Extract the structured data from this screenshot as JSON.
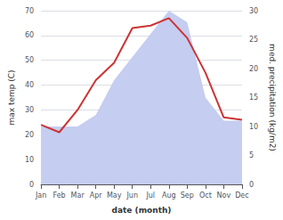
{
  "chart_data": {
    "type": "line",
    "categories": [
      "Jan",
      "Feb",
      "Mar",
      "Apr",
      "May",
      "Jun",
      "Jul",
      "Aug",
      "Sep",
      "Oct",
      "Nov",
      "Dec"
    ],
    "xlabel": "date (month)",
    "ylabel": "max temp (C)",
    "y2label": "med. precipitation (kg/m2)",
    "series": [
      {
        "type": "line",
        "color": "#cc3333",
        "values": [
          24,
          21,
          30,
          42,
          49,
          63,
          64,
          67,
          59,
          45,
          27,
          26
        ]
      },
      {
        "type": "area",
        "color": "#c5cdf0",
        "axis": "y2",
        "values": [
          10,
          10,
          10,
          12,
          18,
          22,
          26,
          30,
          28,
          15,
          11,
          11
        ]
      }
    ],
    "ylim": [
      0,
      70
    ],
    "yticks": [
      0,
      10,
      20,
      30,
      40,
      50,
      60,
      70
    ],
    "y2lim": [
      0,
      30
    ],
    "y2ticks": [
      0,
      5,
      10,
      15,
      20,
      25,
      30
    ],
    "grid": true
  }
}
